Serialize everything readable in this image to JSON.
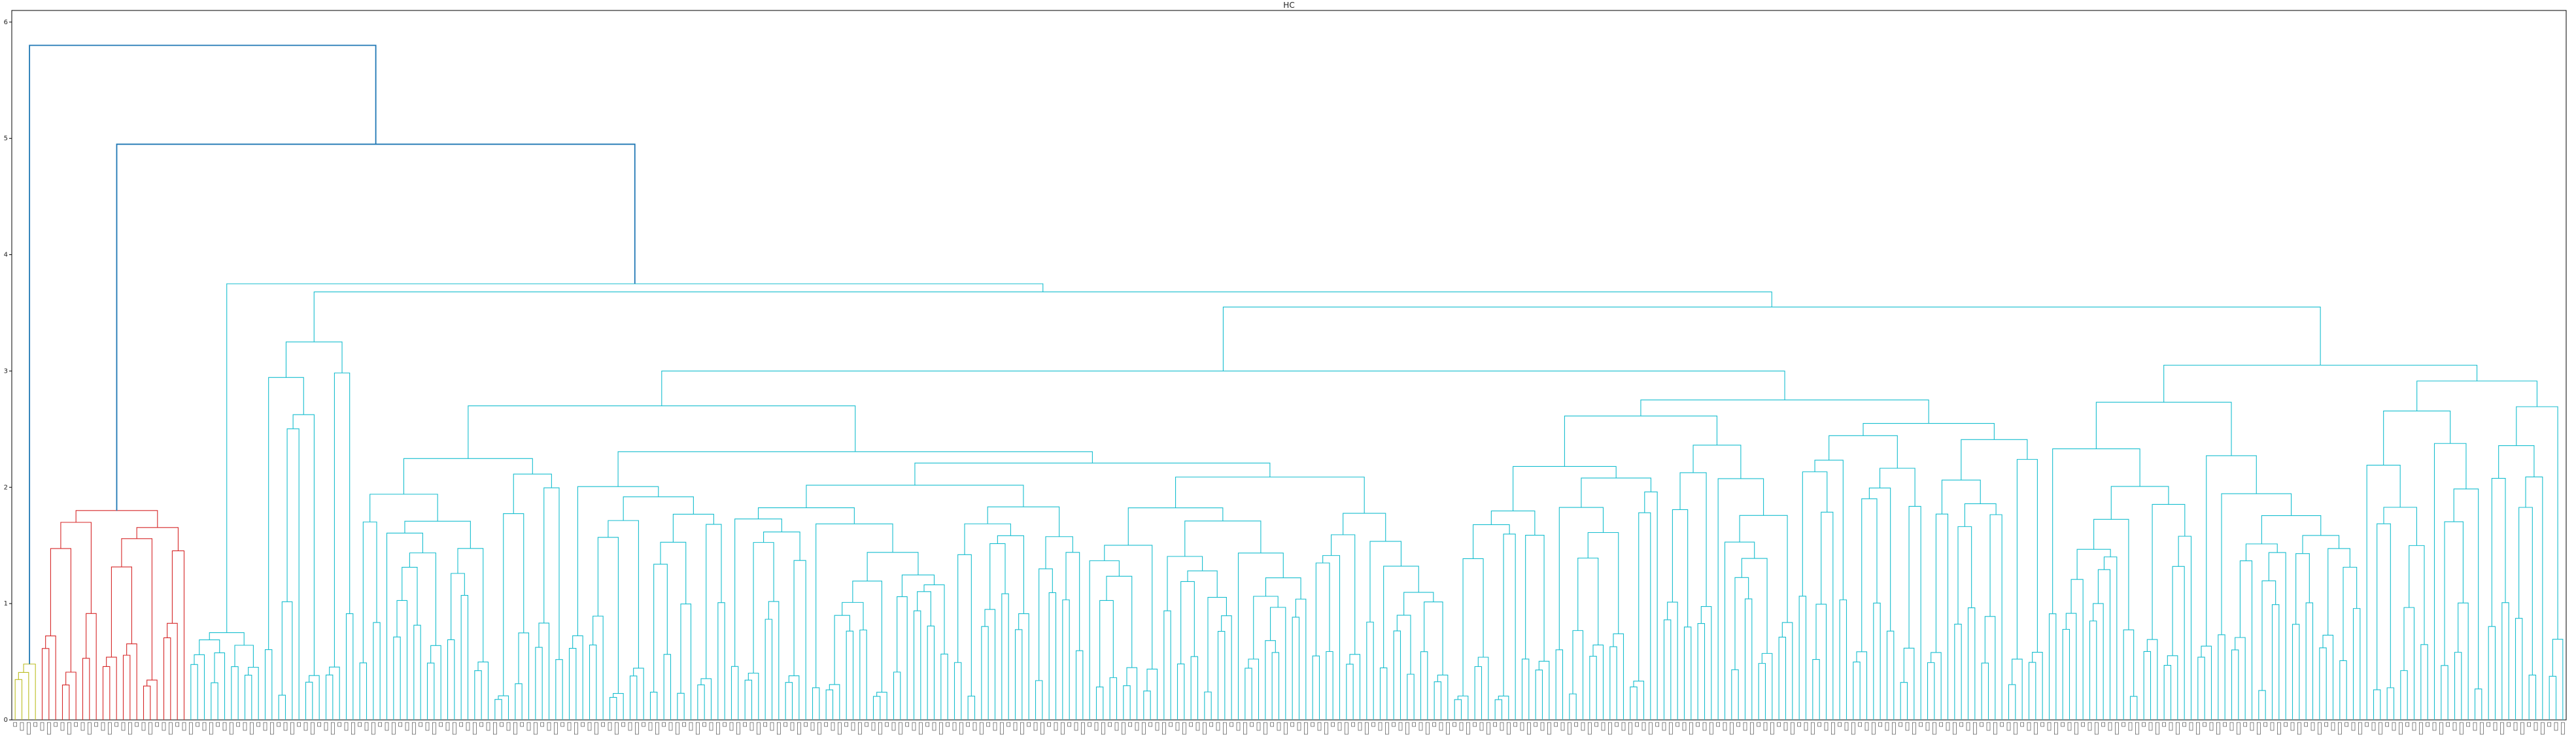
{
  "chart_data": {
    "type": "dendrogram",
    "title": "HC",
    "xlabel": "",
    "ylabel": "",
    "ylim": [
      0,
      6.1
    ],
    "yticks": [
      0,
      1,
      2,
      3,
      4,
      5,
      6
    ],
    "leaf_count": 378,
    "leaf_labels_legible": false,
    "colors": {
      "above_threshold": "#1f77b4",
      "cluster_1": "#bcbd22",
      "cluster_2": "#d62728",
      "cluster_3": "#17becf"
    },
    "top_merges": [
      {
        "height": 5.8,
        "left": "cluster_1",
        "right": "node_4.95"
      },
      {
        "height": 4.95,
        "left": "cluster_2",
        "right": "cluster_3"
      }
    ],
    "clusters": [
      {
        "name": "cluster_1",
        "color": "#bcbd22",
        "leaf_range": [
          0,
          3
        ],
        "merge_height": 0.48
      },
      {
        "name": "cluster_2",
        "color": "#d62728",
        "leaf_range": [
          4,
          25
        ],
        "merge_height": 1.8,
        "sub_merges": [
          0.08,
          1.2,
          0.6
        ]
      },
      {
        "name": "cluster_3",
        "color": "#17becf",
        "leaf_range": [
          26,
          377
        ],
        "merge_height": 3.75,
        "major_merges": [
          3.68,
          3.55,
          3.25,
          3.05,
          3.0,
          2.9,
          2.85,
          2.6,
          2.55,
          2.45,
          2.42,
          2.3,
          2.25,
          2.1,
          2.05,
          1.98,
          1.95,
          1.9,
          1.87,
          1.85,
          1.8,
          1.75,
          1.65,
          1.6,
          1.5,
          1.3,
          1.2,
          1.15,
          1.05,
          0.75,
          0.6,
          0.42,
          0.3,
          0.15
        ]
      }
    ]
  }
}
